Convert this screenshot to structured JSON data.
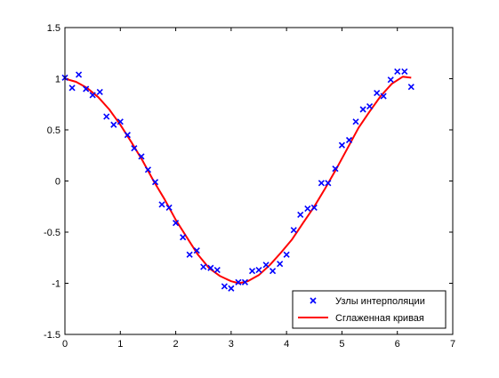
{
  "chart_data": {
    "type": "line",
    "title": "",
    "xlabel": "",
    "ylabel": "",
    "xlim": [
      0,
      7
    ],
    "ylim": [
      -1.5,
      1.5
    ],
    "xticks": [
      0,
      1,
      2,
      3,
      4,
      5,
      6,
      7
    ],
    "yticks": [
      -1.5,
      -1,
      -0.5,
      0,
      0.5,
      1,
      1.5
    ],
    "xtick_labels": [
      "0",
      "1",
      "2",
      "3",
      "4",
      "5",
      "6",
      "7"
    ],
    "ytick_labels": [
      "-1.5",
      "-1",
      "-0.5",
      "0",
      "0.5",
      "1",
      "1.5"
    ],
    "grid": false,
    "legend_position": "bottom-right",
    "series": [
      {
        "name": "Узлы интерполяции",
        "style": "marker-x",
        "color": "#0000ff",
        "x": [
          0.0,
          0.13,
          0.25,
          0.38,
          0.5,
          0.63,
          0.75,
          0.88,
          1.0,
          1.13,
          1.25,
          1.38,
          1.5,
          1.63,
          1.75,
          1.88,
          2.0,
          2.13,
          2.25,
          2.38,
          2.5,
          2.63,
          2.75,
          2.88,
          3.0,
          3.13,
          3.25,
          3.38,
          3.5,
          3.63,
          3.75,
          3.88,
          4.0,
          4.13,
          4.25,
          4.38,
          4.5,
          4.63,
          4.75,
          4.88,
          5.0,
          5.13,
          5.25,
          5.38,
          5.5,
          5.63,
          5.75,
          5.88,
          6.0,
          6.13,
          6.25
        ],
        "y": [
          1.01,
          0.91,
          1.04,
          0.9,
          0.84,
          0.87,
          0.63,
          0.55,
          0.58,
          0.45,
          0.32,
          0.24,
          0.11,
          -0.01,
          -0.23,
          -0.26,
          -0.41,
          -0.55,
          -0.72,
          -0.68,
          -0.84,
          -0.85,
          -0.87,
          -1.03,
          -1.05,
          -0.99,
          -0.99,
          -0.88,
          -0.87,
          -0.82,
          -0.88,
          -0.81,
          -0.72,
          -0.48,
          -0.33,
          -0.27,
          -0.26,
          -0.02,
          -0.02,
          0.12,
          0.35,
          0.4,
          0.58,
          0.7,
          0.73,
          0.86,
          0.83,
          0.99,
          1.07,
          1.07,
          0.92
        ]
      },
      {
        "name": "Сглаженная кривая",
        "style": "line",
        "color": "#ff0000",
        "x": [
          0.0,
          0.2,
          0.4,
          0.6,
          0.8,
          1.0,
          1.2,
          1.4,
          1.6,
          1.8,
          2.0,
          2.2,
          2.4,
          2.6,
          2.8,
          3.0,
          3.14,
          3.3,
          3.5,
          3.7,
          3.9,
          4.1,
          4.3,
          4.5,
          4.7,
          4.9,
          5.1,
          5.3,
          5.5,
          5.7,
          5.9,
          6.1,
          6.25
        ],
        "y": [
          1.0,
          0.97,
          0.91,
          0.82,
          0.7,
          0.55,
          0.38,
          0.2,
          0.0,
          -0.18,
          -0.38,
          -0.55,
          -0.72,
          -0.85,
          -0.93,
          -0.98,
          -1.0,
          -0.98,
          -0.92,
          -0.82,
          -0.7,
          -0.57,
          -0.41,
          -0.25,
          -0.07,
          0.12,
          0.32,
          0.52,
          0.68,
          0.83,
          0.95,
          1.02,
          1.01
        ]
      }
    ]
  }
}
